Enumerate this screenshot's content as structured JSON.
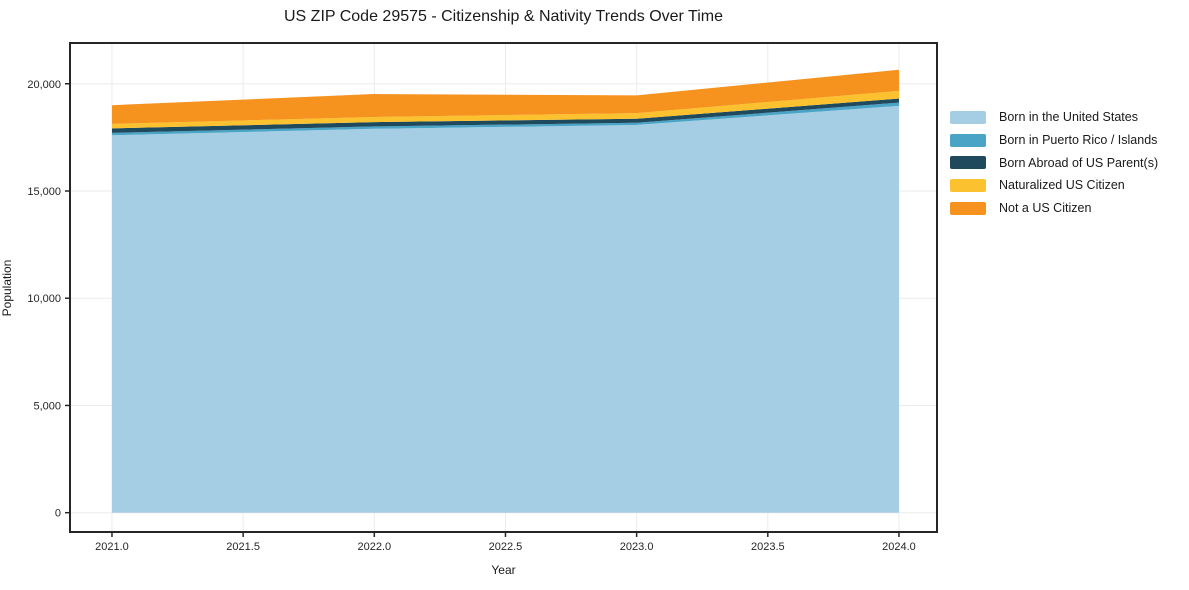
{
  "figure": {
    "background": "#ffffff"
  },
  "chart_data": {
    "type": "area",
    "stacked": true,
    "title": "US ZIP Code 29575 - Citizenship & Nativity Trends Over Time",
    "xlabel": "Year",
    "ylabel": "Population",
    "x": [
      2021,
      2022,
      2023,
      2024
    ],
    "series": [
      {
        "name": "Born in the United States",
        "color": "#a5cee4",
        "values": [
          17600,
          17900,
          18080,
          18970
        ]
      },
      {
        "name": "Born in Puerto Rico / Islands",
        "color": "#49a4c6",
        "values": [
          110,
          110,
          100,
          150
        ]
      },
      {
        "name": "Born Abroad of US Parent(s)",
        "color": "#1f4a5e",
        "values": [
          210,
          200,
          190,
          190
        ]
      },
      {
        "name": "Naturalized US Citizen",
        "color": "#fcc12e",
        "values": [
          210,
          240,
          260,
          360
        ]
      },
      {
        "name": "Not a US Citizen",
        "color": "#f6921e",
        "values": [
          870,
          1070,
          830,
          980
        ]
      }
    ],
    "stacked_totals": [
      19000,
      19520,
      19460,
      20650
    ],
    "xticks": {
      "values": [
        2021.0,
        2021.5,
        2022.0,
        2022.5,
        2023.0,
        2023.5,
        2024.0
      ],
      "labels": [
        "2021.0",
        "2021.5",
        "2022.0",
        "2022.5",
        "2023.0",
        "2023.5",
        "2024.0"
      ]
    },
    "yticks": {
      "values": [
        0,
        5000,
        10000,
        15000,
        20000
      ],
      "labels": [
        "0",
        "5,000",
        "10,000",
        "15,000",
        "20,000"
      ]
    },
    "xlim": [
      2020.84,
      2024.145
    ],
    "ylim": [
      -900,
      21900
    ],
    "grid": true,
    "legend_position": "right-outside"
  },
  "style_colors": {
    "grid": "#ebebeb",
    "spine": "#262626",
    "tick": "#262626",
    "text": "#1a1a1a"
  }
}
